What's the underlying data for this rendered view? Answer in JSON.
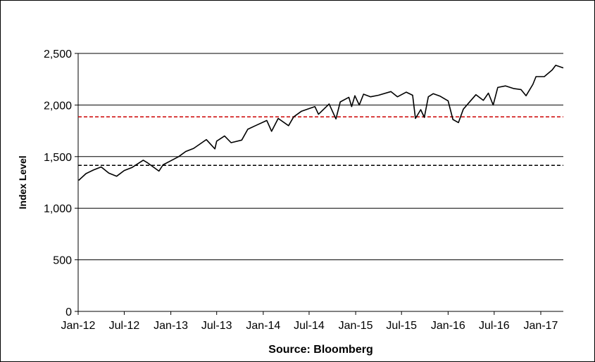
{
  "chart_data": {
    "type": "line",
    "title": "",
    "xlabel": "",
    "ylabel": "Index Level",
    "source": "Source: Bloomberg",
    "x_range": [
      "2012-01-01",
      "2017-03-31"
    ],
    "ylim": [
      0,
      2500
    ],
    "y_ticks": [
      0,
      500,
      1000,
      1500,
      2000,
      2500
    ],
    "y_tick_labels": [
      "0",
      "500",
      "1,000",
      "1,500",
      "2,000",
      "2,500"
    ],
    "x_ticks": [
      "2012-01-01",
      "2012-07-01",
      "2013-01-01",
      "2013-07-01",
      "2014-01-01",
      "2014-07-01",
      "2015-01-01",
      "2015-07-01",
      "2016-01-01",
      "2016-07-01",
      "2017-01-01"
    ],
    "x_tick_labels": [
      "Jan-12",
      "Jul-12",
      "Jan-13",
      "Jul-13",
      "Jan-14",
      "Jul-14",
      "Jan-15",
      "Jul-15",
      "Jan-16",
      "Jul-16",
      "Jan-17"
    ],
    "grid": true,
    "colors": {
      "series": "#000000",
      "upper_reference": "#cc0000",
      "lower_reference": "#000000"
    },
    "reference_lines": [
      {
        "value": 1885,
        "style": "dashed",
        "color": "#cc0000"
      },
      {
        "value": 1415,
        "style": "dashed",
        "color": "#000000"
      }
    ],
    "series": [
      {
        "x": [
          "2012-01-03",
          "2012-02-01",
          "2012-03-01",
          "2012-04-01",
          "2012-05-01",
          "2012-06-01",
          "2012-07-01",
          "2012-08-01",
          "2012-09-14",
          "2012-10-01",
          "2012-11-15",
          "2012-12-01",
          "2013-01-01",
          "2013-02-01",
          "2013-03-01",
          "2013-04-01",
          "2013-05-21",
          "2013-06-24",
          "2013-07-01",
          "2013-08-01",
          "2013-08-27",
          "2013-10-08",
          "2013-11-01",
          "2013-12-01",
          "2014-01-15",
          "2014-02-03",
          "2014-03-01",
          "2014-04-11",
          "2014-05-01",
          "2014-06-01",
          "2014-07-24",
          "2014-08-07",
          "2014-09-18",
          "2014-10-15",
          "2014-11-01",
          "2014-12-05",
          "2014-12-16",
          "2014-12-29",
          "2015-01-15",
          "2015-02-01",
          "2015-03-01",
          "2015-04-01",
          "2015-05-20",
          "2015-06-15",
          "2015-07-20",
          "2015-08-14",
          "2015-08-25",
          "2015-09-15",
          "2015-09-29",
          "2015-10-15",
          "2015-11-03",
          "2015-12-01",
          "2016-01-01",
          "2016-01-20",
          "2016-02-11",
          "2016-03-01",
          "2016-04-20",
          "2016-05-19",
          "2016-06-08",
          "2016-06-27",
          "2016-07-15",
          "2016-08-15",
          "2016-09-15",
          "2016-10-15",
          "2016-11-04",
          "2016-12-01",
          "2016-12-13",
          "2017-01-15",
          "2017-02-15",
          "2017-03-01",
          "2017-03-31"
        ],
        "values": [
          1270,
          1335,
          1370,
          1400,
          1340,
          1310,
          1365,
          1395,
          1465,
          1440,
          1360,
          1420,
          1460,
          1500,
          1550,
          1580,
          1665,
          1575,
          1650,
          1700,
          1635,
          1660,
          1765,
          1800,
          1850,
          1745,
          1870,
          1800,
          1885,
          1940,
          1985,
          1910,
          2010,
          1865,
          2030,
          2075,
          1985,
          2090,
          2000,
          2105,
          2080,
          2095,
          2130,
          2080,
          2125,
          2095,
          1870,
          1955,
          1880,
          2080,
          2110,
          2085,
          2040,
          1860,
          1830,
          1960,
          2100,
          2045,
          2115,
          2000,
          2170,
          2185,
          2160,
          2150,
          2090,
          2200,
          2275,
          2275,
          2340,
          2385,
          2360
        ]
      }
    ]
  }
}
